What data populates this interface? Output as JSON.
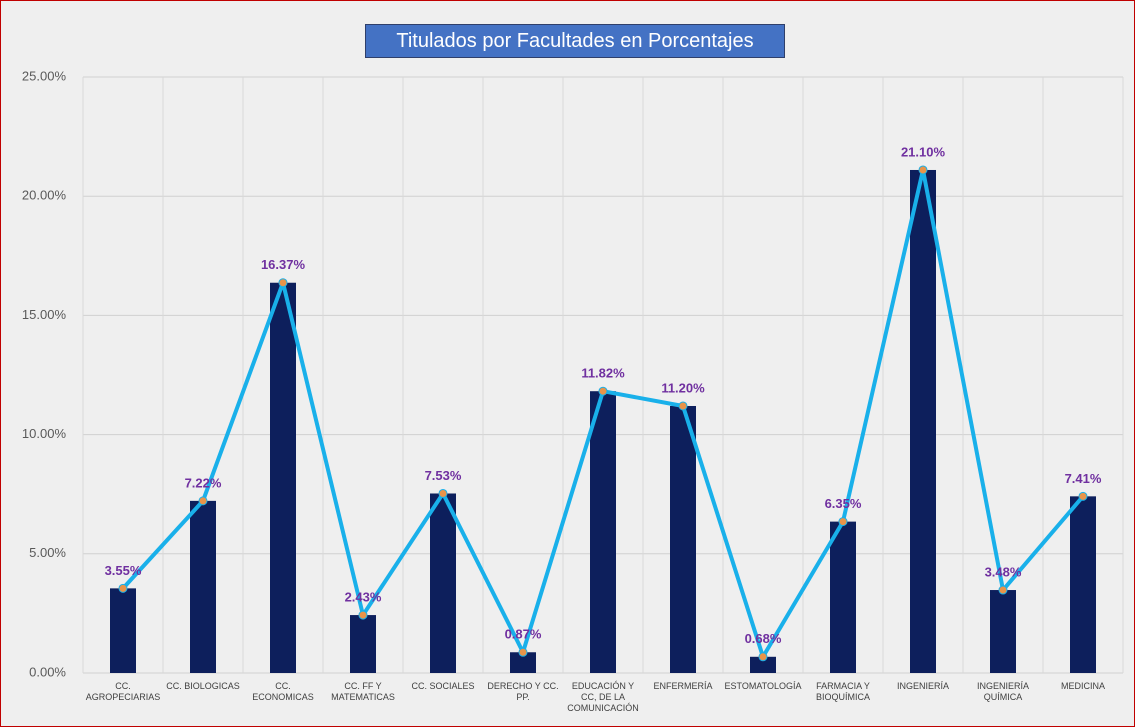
{
  "chart_data": {
    "type": "bar",
    "title": "Titulados por Facultades en Porcentajes",
    "categories": [
      "CC. AGROPECIARIAS",
      "CC. BIOLOGICAS",
      "CC. ECONOMICAS",
      "CC. FF Y MATEMATICAS",
      "CC. SOCIALES",
      "DERECHO Y CC. PP.",
      "EDUCACIÓN Y CC, DE LA COMUNICACIÓN",
      "ENFERMERÍA",
      "ESTOMATOLOGÍA",
      "FARMACIA Y BIOQUÍMICA",
      "INGENIERÍA",
      "INGENIERÍA QUÍMICA",
      "MEDICINA"
    ],
    "values": [
      3.55,
      7.22,
      16.37,
      2.43,
      7.53,
      0.87,
      11.82,
      11.2,
      0.68,
      6.35,
      21.1,
      3.48,
      7.41
    ],
    "value_labels": [
      "3.55%",
      "7.22%",
      "16.37%",
      "2.43%",
      "7.53%",
      "0.87%",
      "11.82%",
      "11.20%",
      "0.68%",
      "6.35%",
      "21.10%",
      "3.48%",
      "7.41%"
    ],
    "color": "#0d1f5c",
    "line_color": "#19b0ea",
    "marker_color": "#e8944a",
    "label_color": "#7030a0",
    "ylim": [
      0,
      25
    ],
    "yticks": [
      {
        "value": 0,
        "label": "0.00%"
      },
      {
        "value": 5,
        "label": "5.00%"
      },
      {
        "value": 10,
        "label": "10.00%"
      },
      {
        "value": 15,
        "label": "15.00%"
      },
      {
        "value": 20,
        "label": "20.00%"
      },
      {
        "value": 25,
        "label": "25.00%"
      }
    ],
    "grid": true
  }
}
